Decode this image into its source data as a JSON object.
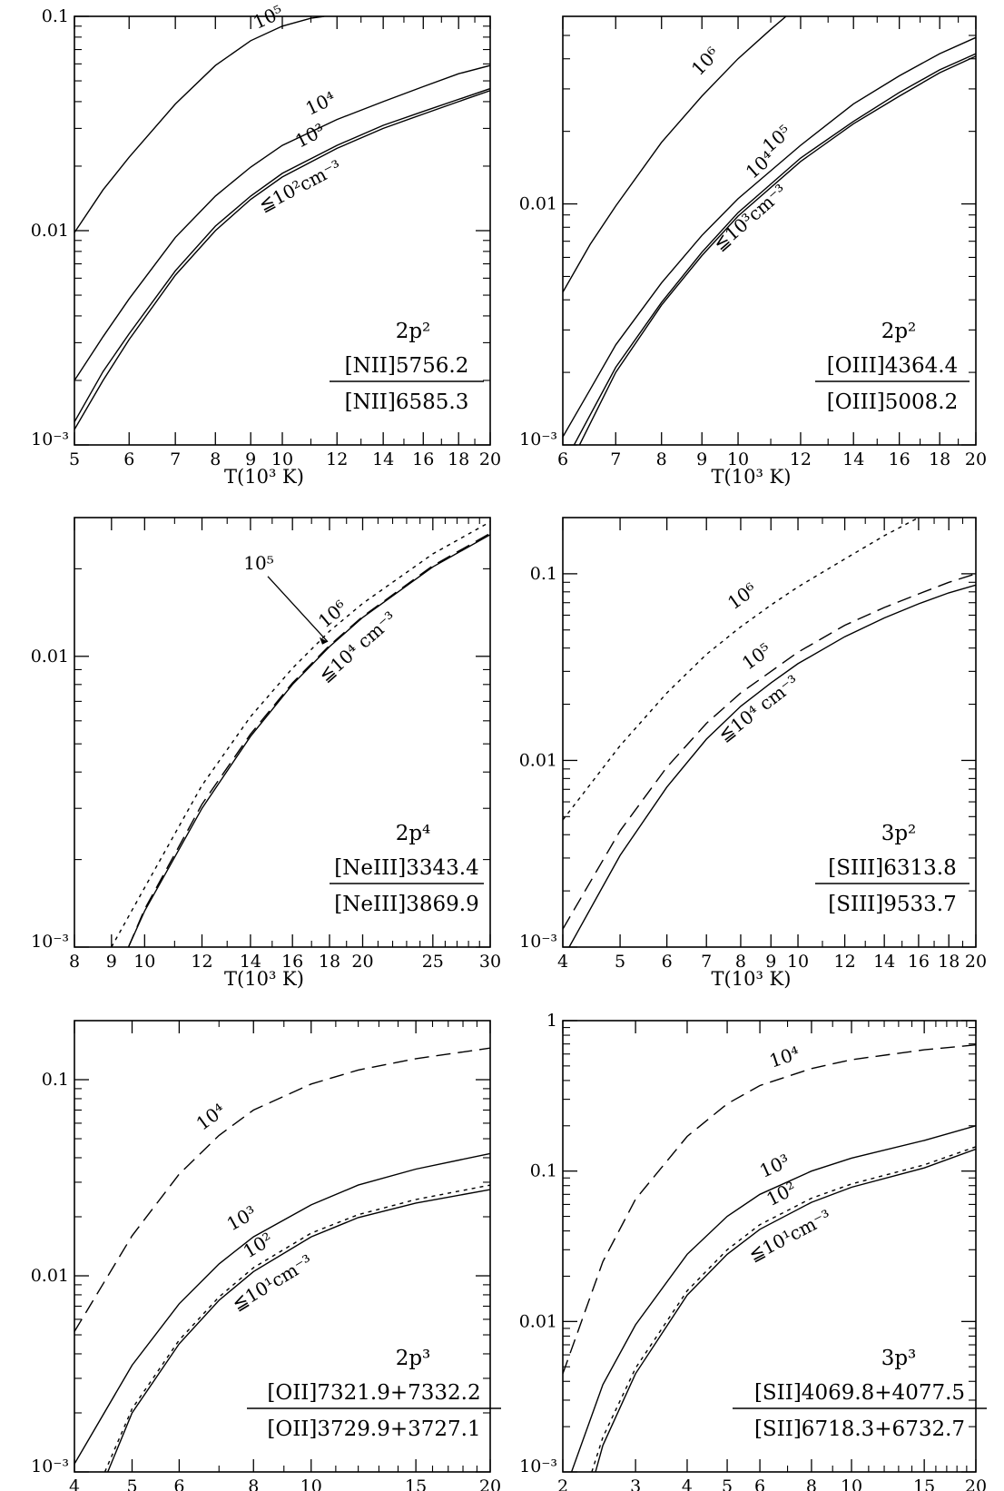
{
  "figure": {
    "background": "#ffffff",
    "line_color": "#000000"
  },
  "chart_data": [
    {
      "type": "line",
      "x_scale": "log",
      "y_scale": "log",
      "xlim": [
        5,
        20
      ],
      "ylim": [
        0.001,
        0.1
      ],
      "x_ticks": [
        5,
        6,
        7,
        8,
        9,
        10,
        12,
        14,
        16,
        18,
        20
      ],
      "x_tick_labels": [
        "5",
        "6",
        "7",
        "8",
        "9",
        "10",
        "12",
        "14",
        "16",
        "18",
        "20"
      ],
      "y_ticks": [
        0.001,
        0.01,
        0.1
      ],
      "y_tick_labels": [
        "10⁻³",
        "0.01",
        "0.1"
      ],
      "xlabel": "T(10³ K)",
      "ylabel": "",
      "annotation": {
        "config": "2p²",
        "numerator": "[NII]5756.2",
        "denominator": "[NII]6585.3"
      },
      "series": [
        {
          "name": "10⁵",
          "style": "solid",
          "x": [
            5,
            5.5,
            6,
            7,
            8,
            9,
            10,
            11,
            11.5
          ],
          "y": [
            0.0098,
            0.0155,
            0.022,
            0.039,
            0.059,
            0.077,
            0.09,
            0.098,
            0.1
          ]
        },
        {
          "name": "10⁴",
          "style": "solid",
          "x": [
            5,
            5.5,
            6,
            7,
            8,
            9,
            10,
            12,
            14,
            16,
            18,
            20
          ],
          "y": [
            0.002,
            0.0032,
            0.0048,
            0.0093,
            0.0145,
            0.0198,
            0.025,
            0.033,
            0.04,
            0.047,
            0.054,
            0.059
          ]
        },
        {
          "name": "10³",
          "style": "solid",
          "x": [
            5,
            5.5,
            6,
            7,
            8,
            9,
            10,
            12,
            14,
            16,
            18,
            20
          ],
          "y": [
            0.00128,
            0.0022,
            0.0033,
            0.0065,
            0.0105,
            0.0145,
            0.0185,
            0.025,
            0.031,
            0.036,
            0.041,
            0.046
          ]
        },
        {
          "name": "≦10²cm⁻³",
          "style": "solid",
          "x": [
            5,
            5.5,
            6,
            7,
            8,
            9,
            10,
            12,
            14,
            16,
            18,
            20
          ],
          "y": [
            0.00118,
            0.002,
            0.0031,
            0.0062,
            0.01,
            0.014,
            0.0178,
            0.0242,
            0.03,
            0.035,
            0.04,
            0.045
          ]
        }
      ]
    },
    {
      "type": "line",
      "x_scale": "log",
      "y_scale": "log",
      "xlim": [
        6,
        20
      ],
      "ylim": [
        0.001,
        0.06
      ],
      "x_ticks": [
        6,
        7,
        8,
        9,
        10,
        12,
        14,
        16,
        18,
        20
      ],
      "x_tick_labels": [
        "6",
        "7",
        "8",
        "9",
        "10",
        "12",
        "14",
        "16",
        "18",
        "20"
      ],
      "y_ticks": [
        0.001,
        0.01
      ],
      "y_tick_labels": [
        "10⁻³",
        "0.01"
      ],
      "xlabel": "T(10³ K)",
      "ylabel": "",
      "annotation": {
        "config": "2p²",
        "numerator": "[OIII]4364.4",
        "denominator": "[OIII]5008.2"
      },
      "series": [
        {
          "name": "10⁶",
          "style": "solid",
          "x": [
            6,
            6.5,
            7,
            8,
            9,
            10,
            11,
            11.5
          ],
          "y": [
            0.0043,
            0.0068,
            0.0098,
            0.018,
            0.028,
            0.04,
            0.053,
            0.06
          ]
        },
        {
          "name": "10⁵",
          "style": "solid",
          "x": [
            6,
            6.5,
            7,
            8,
            9,
            10,
            12,
            14,
            16,
            18,
            20
          ],
          "y": [
            0.00108,
            0.0017,
            0.0026,
            0.0047,
            0.0074,
            0.0105,
            0.0175,
            0.026,
            0.034,
            0.042,
            0.049
          ]
        },
        {
          "name": "10⁴",
          "style": "solid",
          "x": [
            6.2,
            7,
            8,
            9,
            10,
            12,
            14,
            16,
            18,
            20
          ],
          "y": [
            0.001,
            0.0021,
            0.0039,
            0.0063,
            0.0092,
            0.0155,
            0.022,
            0.029,
            0.036,
            0.042
          ]
        },
        {
          "name": "≦10³cm⁻³",
          "style": "solid",
          "x": [
            6.3,
            7,
            8,
            9,
            10,
            12,
            14,
            16,
            18,
            20
          ],
          "y": [
            0.001,
            0.002,
            0.0038,
            0.0061,
            0.0089,
            0.015,
            0.0215,
            0.028,
            0.035,
            0.041
          ]
        }
      ]
    },
    {
      "type": "line",
      "x_scale": "log",
      "y_scale": "log",
      "xlim": [
        8,
        30
      ],
      "ylim": [
        0.001,
        0.03
      ],
      "x_ticks": [
        8,
        9,
        10,
        12,
        14,
        16,
        18,
        20,
        25,
        30
      ],
      "x_tick_labels": [
        "8",
        "9",
        "10",
        "12",
        "14",
        "16",
        "18",
        "20",
        "25",
        "30"
      ],
      "y_ticks": [
        0.001,
        0.01
      ],
      "y_tick_labels": [
        "10⁻³",
        "0.01"
      ],
      "xlabel": "T(10³ K)",
      "ylabel": "",
      "annotation": {
        "config": "2p⁴",
        "numerator": "[NeIII]3343.4",
        "denominator": "[NeIII]3869.9"
      },
      "arrow_label": "10⁵",
      "series": [
        {
          "name": "10⁶",
          "style": "dotted",
          "x": [
            9,
            10,
            12,
            14,
            16,
            18,
            20,
            25,
            30
          ],
          "y": [
            0.001,
            0.0016,
            0.0036,
            0.0062,
            0.0091,
            0.0122,
            0.0152,
            0.0225,
            0.029
          ]
        },
        {
          "name": "10⁵",
          "style": "dashed",
          "x": [
            9.5,
            10,
            12,
            14,
            16,
            18,
            20,
            25,
            30
          ],
          "y": [
            0.001,
            0.00135,
            0.0031,
            0.0054,
            0.0081,
            0.0109,
            0.0137,
            0.0205,
            0.0265
          ]
        },
        {
          "name": "≦10⁴ cm⁻³",
          "style": "solid",
          "x": [
            9.5,
            10,
            12,
            14,
            16,
            18,
            20,
            25,
            30
          ],
          "y": [
            0.001,
            0.00133,
            0.003,
            0.0053,
            0.008,
            0.0108,
            0.0136,
            0.0203,
            0.0262
          ]
        }
      ]
    },
    {
      "type": "line",
      "x_scale": "log",
      "y_scale": "log",
      "xlim": [
        4,
        20
      ],
      "ylim": [
        0.001,
        0.2
      ],
      "x_ticks": [
        4,
        5,
        6,
        7,
        8,
        9,
        10,
        12,
        14,
        16,
        18,
        20
      ],
      "x_tick_labels": [
        "4",
        "5",
        "6",
        "7",
        "8",
        "9",
        "10",
        "12",
        "14",
        "16",
        "18",
        "20"
      ],
      "y_ticks": [
        0.001,
        0.01,
        0.1
      ],
      "y_tick_labels": [
        "10⁻³",
        "0.01",
        "0.1"
      ],
      "xlabel": "T(10³ K)",
      "ylabel": "",
      "annotation": {
        "config": "3p²",
        "numerator": "[SIII]6313.8",
        "denominator": "[SIII]9533.7"
      },
      "series": [
        {
          "name": "10⁶",
          "style": "dotted",
          "x": [
            4,
            5,
            6,
            7,
            8,
            9,
            10,
            12,
            14,
            16
          ],
          "y": [
            0.0048,
            0.012,
            0.023,
            0.037,
            0.052,
            0.068,
            0.085,
            0.12,
            0.16,
            0.2
          ]
        },
        {
          "name": "10⁵",
          "style": "dashed",
          "x": [
            4,
            5,
            6,
            7,
            8,
            9,
            10,
            12,
            14,
            16,
            18,
            20
          ],
          "y": [
            0.00125,
            0.0042,
            0.0092,
            0.0158,
            0.023,
            0.03,
            0.038,
            0.053,
            0.066,
            0.078,
            0.09,
            0.1
          ]
        },
        {
          "name": "≦10⁴ cm⁻³",
          "style": "solid",
          "x": [
            4.1,
            5,
            6,
            7,
            8,
            9,
            10,
            12,
            14,
            16,
            18,
            20
          ],
          "y": [
            0.001,
            0.0031,
            0.0072,
            0.013,
            0.0195,
            0.026,
            0.033,
            0.046,
            0.058,
            0.069,
            0.079,
            0.087
          ]
        }
      ]
    },
    {
      "type": "line",
      "x_scale": "log",
      "y_scale": "log",
      "xlim": [
        4,
        20
      ],
      "ylim": [
        0.001,
        0.2
      ],
      "x_ticks": [
        4,
        5,
        6,
        8,
        10,
        15,
        20
      ],
      "x_tick_labels": [
        "4",
        "5",
        "6",
        "8",
        "10",
        "15",
        "20"
      ],
      "y_ticks": [
        0.001,
        0.01,
        0.1
      ],
      "y_tick_labels": [
        "10⁻³",
        "0.01",
        "0.1"
      ],
      "xlabel": "T(10³ K)",
      "ylabel": "",
      "annotation": {
        "config": "2p³",
        "numerator": "[OII]7321.9+7332.2",
        "denominator": "[OII]3729.9+3727.1"
      },
      "series": [
        {
          "name": "10⁴",
          "style": "dashed",
          "x": [
            4,
            5,
            6,
            7,
            8,
            10,
            12,
            15,
            20
          ],
          "y": [
            0.0052,
            0.016,
            0.033,
            0.052,
            0.07,
            0.095,
            0.112,
            0.128,
            0.145
          ]
        },
        {
          "name": "10³",
          "style": "solid",
          "x": [
            4,
            5,
            6,
            7,
            8,
            10,
            12,
            15,
            20
          ],
          "y": [
            0.0011,
            0.0035,
            0.0072,
            0.0115,
            0.0158,
            0.023,
            0.029,
            0.035,
            0.042
          ]
        },
        {
          "name": "10²",
          "style": "dotted",
          "x": [
            4.5,
            5,
            6,
            7,
            8,
            10,
            12,
            15,
            20
          ],
          "y": [
            0.001,
            0.0021,
            0.0047,
            0.0078,
            0.011,
            0.0165,
            0.0205,
            0.0245,
            0.029
          ]
        },
        {
          "name": "≦10¹cm⁻³",
          "style": "solid",
          "x": [
            4.55,
            5,
            6,
            7,
            8,
            10,
            12,
            15,
            20
          ],
          "y": [
            0.001,
            0.002,
            0.0045,
            0.0075,
            0.0105,
            0.0158,
            0.0198,
            0.0235,
            0.0275
          ]
        }
      ]
    },
    {
      "type": "line",
      "x_scale": "log",
      "y_scale": "log",
      "xlim": [
        2,
        20
      ],
      "ylim": [
        0.001,
        1
      ],
      "x_ticks": [
        2,
        3,
        4,
        5,
        6,
        8,
        10,
        15,
        20
      ],
      "x_tick_labels": [
        "2",
        "3",
        "4",
        "5",
        "6",
        "8",
        "10",
        "15",
        "20"
      ],
      "y_ticks": [
        0.001,
        0.01,
        0.1,
        1
      ],
      "y_tick_labels": [
        "10⁻³",
        "0.01",
        "0.1",
        "1"
      ],
      "xlabel": "T(10³ K)",
      "ylabel": "",
      "annotation": {
        "config": "3p³",
        "numerator": "[SII]4069.8+4077.5",
        "denominator": "[SII]6718.3+6732.7"
      },
      "series": [
        {
          "name": "10⁴",
          "style": "dashed",
          "x": [
            2,
            2.5,
            3,
            4,
            5,
            6,
            8,
            10,
            15,
            20
          ],
          "y": [
            0.0045,
            0.025,
            0.065,
            0.17,
            0.28,
            0.37,
            0.48,
            0.55,
            0.64,
            0.69
          ]
        },
        {
          "name": "10³",
          "style": "solid",
          "x": [
            2.1,
            2.5,
            3,
            4,
            5,
            6,
            8,
            10,
            15,
            20
          ],
          "y": [
            0.001,
            0.0038,
            0.0095,
            0.028,
            0.05,
            0.07,
            0.1,
            0.122,
            0.16,
            0.2
          ]
        },
        {
          "name": "10²",
          "style": "dotted",
          "x": [
            2.35,
            2.5,
            3,
            4,
            5,
            6,
            8,
            10,
            15,
            20
          ],
          "y": [
            0.001,
            0.0017,
            0.0049,
            0.016,
            0.03,
            0.044,
            0.066,
            0.082,
            0.11,
            0.145
          ]
        },
        {
          "name": "≦10¹cm⁻³",
          "style": "solid",
          "x": [
            2.4,
            2.5,
            3,
            4,
            5,
            6,
            8,
            10,
            15,
            20
          ],
          "y": [
            0.001,
            0.0015,
            0.0045,
            0.015,
            0.028,
            0.041,
            0.062,
            0.078,
            0.105,
            0.14
          ]
        }
      ]
    }
  ]
}
